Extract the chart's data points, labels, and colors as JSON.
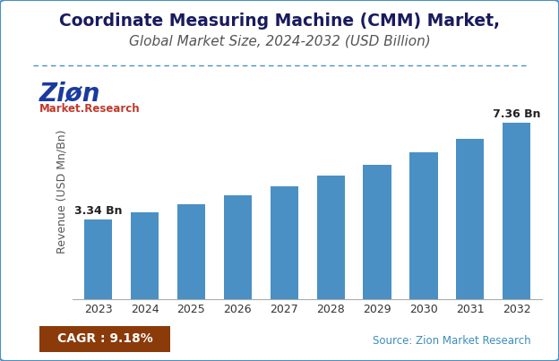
{
  "title_line1": "Coordinate Measuring Machine (CMM) Market,",
  "title_line2": "Global Market Size, 2024-2032 (USD Billion)",
  "years": [
    2023,
    2024,
    2025,
    2026,
    2027,
    2028,
    2029,
    2030,
    2031,
    2032
  ],
  "values": [
    3.34,
    3.64,
    3.97,
    4.33,
    4.72,
    5.15,
    5.61,
    6.12,
    6.68,
    7.36
  ],
  "bar_color": "#4a90c4",
  "ylabel": "Revenue (USD Mn/Bn)",
  "first_label": "3.34 Bn",
  "last_label": "7.36 Bn",
  "cagr_text": "CAGR : 9.18%",
  "cagr_bg_color": "#8B3A0A",
  "cagr_text_color": "#ffffff",
  "source_text": "Source: Zion Market Research",
  "source_text_color": "#3c8dbc",
  "title_color": "#1a1a5e",
  "subtitle_color": "#555555",
  "separator_color": "#4a90c4",
  "border_color": "#4a90c4",
  "ylim": [
    0,
    9.0
  ],
  "background_color": "#ffffff",
  "grid_color": "#dddddd",
  "title_fontsize": 13.5,
  "subtitle_fontsize": 11,
  "ylabel_fontsize": 9,
  "tick_fontsize": 9,
  "annotation_fontsize": 9
}
